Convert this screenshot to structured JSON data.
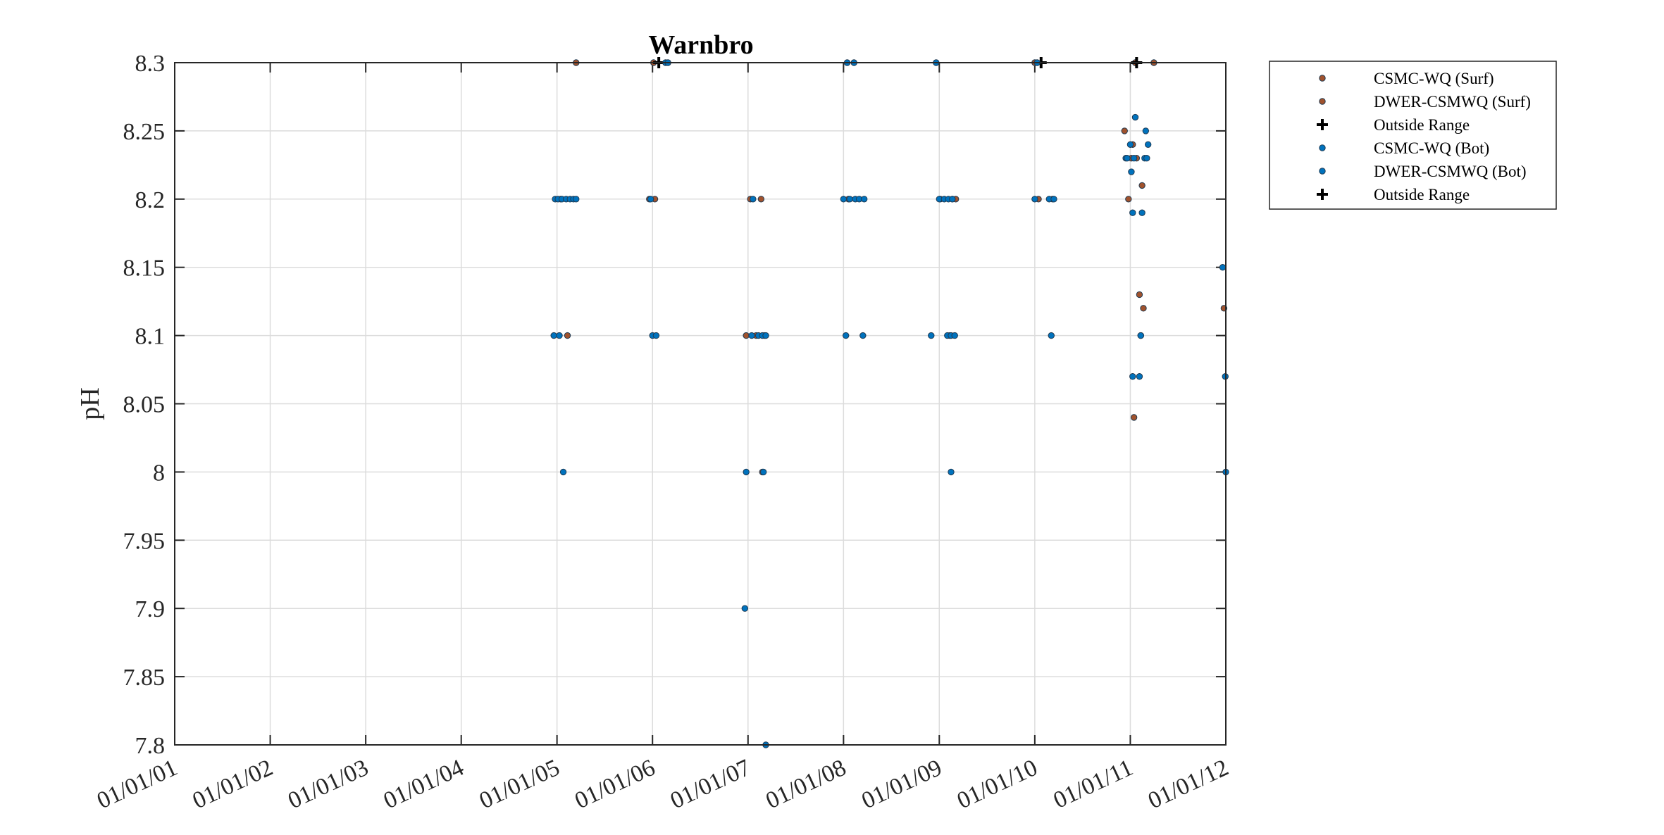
{
  "chart_data": {
    "type": "scatter",
    "title": "Warnbro",
    "xlabel": "",
    "ylabel": "pH",
    "ylim": [
      7.8,
      8.3
    ],
    "xlim": [
      "2001-01-01",
      "2012-01-01"
    ],
    "y_ticks": [
      "7.8",
      "7.85",
      "7.9",
      "7.95",
      "8",
      "8.05",
      "8.1",
      "8.15",
      "8.2",
      "8.25",
      "8.3"
    ],
    "x_ticks": [
      "01/01/01",
      "01/01/02",
      "01/01/03",
      "01/01/04",
      "01/01/05",
      "01/01/06",
      "01/01/07",
      "01/01/08",
      "01/01/09",
      "01/01/10",
      "01/01/11",
      "01/01/12"
    ],
    "grid": true,
    "legend_position": "outside-top-right",
    "colors": {
      "surf": "#a0522d",
      "bot": "#0072bd",
      "outside": "#000000"
    },
    "series": [
      {
        "name": "CSMC-WQ (Surf)",
        "marker": "dot",
        "color": "#a0522d",
        "x": [
          "2005-03-15",
          "2006-01-05",
          "2010-01-01",
          "2011-01-20",
          "2005-01-15",
          "2005-12-20",
          "2006-01-10",
          "2007-01-10",
          "2007-02-20",
          "2008-01-20",
          "2009-01-05",
          "2009-02-20",
          "2009-03-05",
          "2010-01-15",
          "2010-03-10",
          "2010-12-10",
          "2010-12-25",
          "2011-01-10",
          "2011-02-15",
          "2005-02-10",
          "2006-12-25",
          "2007-02-01",
          "2007-03-05",
          "2009-02-10",
          "2007-02-25",
          "2011-01-15",
          "2011-02-05",
          "2011-02-20",
          "2011-02-10",
          "2011-12-25"
        ],
        "y": [
          8.3,
          8.3,
          8.3,
          8.3,
          8.2,
          8.2,
          8.2,
          8.2,
          8.2,
          8.2,
          8.2,
          8.2,
          8.2,
          8.2,
          8.2,
          8.25,
          8.2,
          8.24,
          8.21,
          8.1,
          8.1,
          8.1,
          8.1,
          8.1,
          8.0,
          8.04,
          8.13,
          8.12,
          8.1,
          8.12
        ]
      },
      {
        "name": "DWER-CSMWQ (Surf)",
        "marker": "dot",
        "color": "#a0522d",
        "x": [
          "2011-04-01",
          "2011-01-05",
          "2011-01-25"
        ],
        "y": [
          8.3,
          8.23,
          8.23
        ]
      },
      {
        "name": "Outside Range",
        "marker": "plus",
        "color": "#000000",
        "x": [
          "2006-01-25",
          "2010-01-25",
          "2011-01-25"
        ],
        "y": [
          8.3,
          8.3,
          8.3
        ]
      },
      {
        "name": "CSMC-WQ (Bot)",
        "marker": "dot",
        "color": "#0072bd",
        "x": [
          "2006-02-20",
          "2006-03-01",
          "2008-01-15",
          "2008-02-10",
          "2008-12-20",
          "2010-01-10",
          "2004-12-25",
          "2005-01-05",
          "2005-01-20",
          "2005-02-05",
          "2005-02-20",
          "2005-03-05",
          "2005-03-15",
          "2005-12-25",
          "2007-01-20",
          "2008-01-01",
          "2008-01-25",
          "2008-02-15",
          "2008-03-01",
          "2008-03-20",
          "2009-01-01",
          "2009-01-20",
          "2009-02-05",
          "2009-02-20",
          "2010-01-01",
          "2010-02-25",
          "2010-03-15",
          "2004-12-20",
          "2005-01-10",
          "2006-01-01",
          "2006-01-15",
          "2007-01-15",
          "2007-02-10",
          "2007-02-25",
          "2007-03-10",
          "2008-01-10",
          "2008-03-15",
          "2008-12-01",
          "2009-02-01",
          "2009-02-15",
          "2009-03-01",
          "2010-03-05",
          "2011-02-10",
          "2005-01-25",
          "2006-12-25",
          "2007-03-01",
          "2009-02-15",
          "2006-12-20",
          "2007-03-10",
          "2011-01-10",
          "2011-02-05",
          "2011-12-30"
        ],
        "y": [
          8.3,
          8.3,
          8.3,
          8.3,
          8.3,
          8.3,
          8.2,
          8.2,
          8.2,
          8.2,
          8.2,
          8.2,
          8.2,
          8.2,
          8.2,
          8.2,
          8.2,
          8.2,
          8.2,
          8.2,
          8.2,
          8.2,
          8.2,
          8.2,
          8.2,
          8.2,
          8.2,
          8.1,
          8.1,
          8.1,
          8.1,
          8.1,
          8.1,
          8.1,
          8.1,
          8.1,
          8.1,
          8.1,
          8.1,
          8.1,
          8.1,
          8.1,
          8.1,
          8.0,
          8.0,
          8.0,
          8.0,
          7.9,
          7.8,
          8.07,
          8.07,
          8.07
        ]
      },
      {
        "name": "DWER-CSMWQ (Bot)",
        "marker": "dot",
        "color": "#0072bd",
        "x": [
          "2010-12-15",
          "2011-01-01",
          "2011-02-25",
          "2010-12-20",
          "2011-01-20",
          "2011-03-10",
          "2011-03-01",
          "2011-01-05",
          "2011-01-15",
          "2011-03-05",
          "2011-02-15",
          "2011-12-20",
          "2012-01-01",
          "2011-01-10"
        ],
        "y": [
          8.23,
          8.24,
          8.23,
          8.23,
          8.26,
          8.24,
          8.25,
          8.22,
          8.23,
          8.23,
          8.19,
          8.15,
          8.0,
          8.19
        ]
      }
    ],
    "legend": [
      {
        "label": "CSMC-WQ (Surf)",
        "marker": "dot",
        "color": "#a0522d"
      },
      {
        "label": "DWER-CSMWQ (Surf)",
        "marker": "dot",
        "color": "#a0522d"
      },
      {
        "label": "Outside Range",
        "marker": "plus",
        "color": "#000000"
      },
      {
        "label": "CSMC-WQ (Bot)",
        "marker": "dot",
        "color": "#0072bd"
      },
      {
        "label": "DWER-CSMWQ (Bot)",
        "marker": "dot",
        "color": "#0072bd"
      },
      {
        "label": "Outside Range",
        "marker": "plus",
        "color": "#000000"
      }
    ]
  }
}
